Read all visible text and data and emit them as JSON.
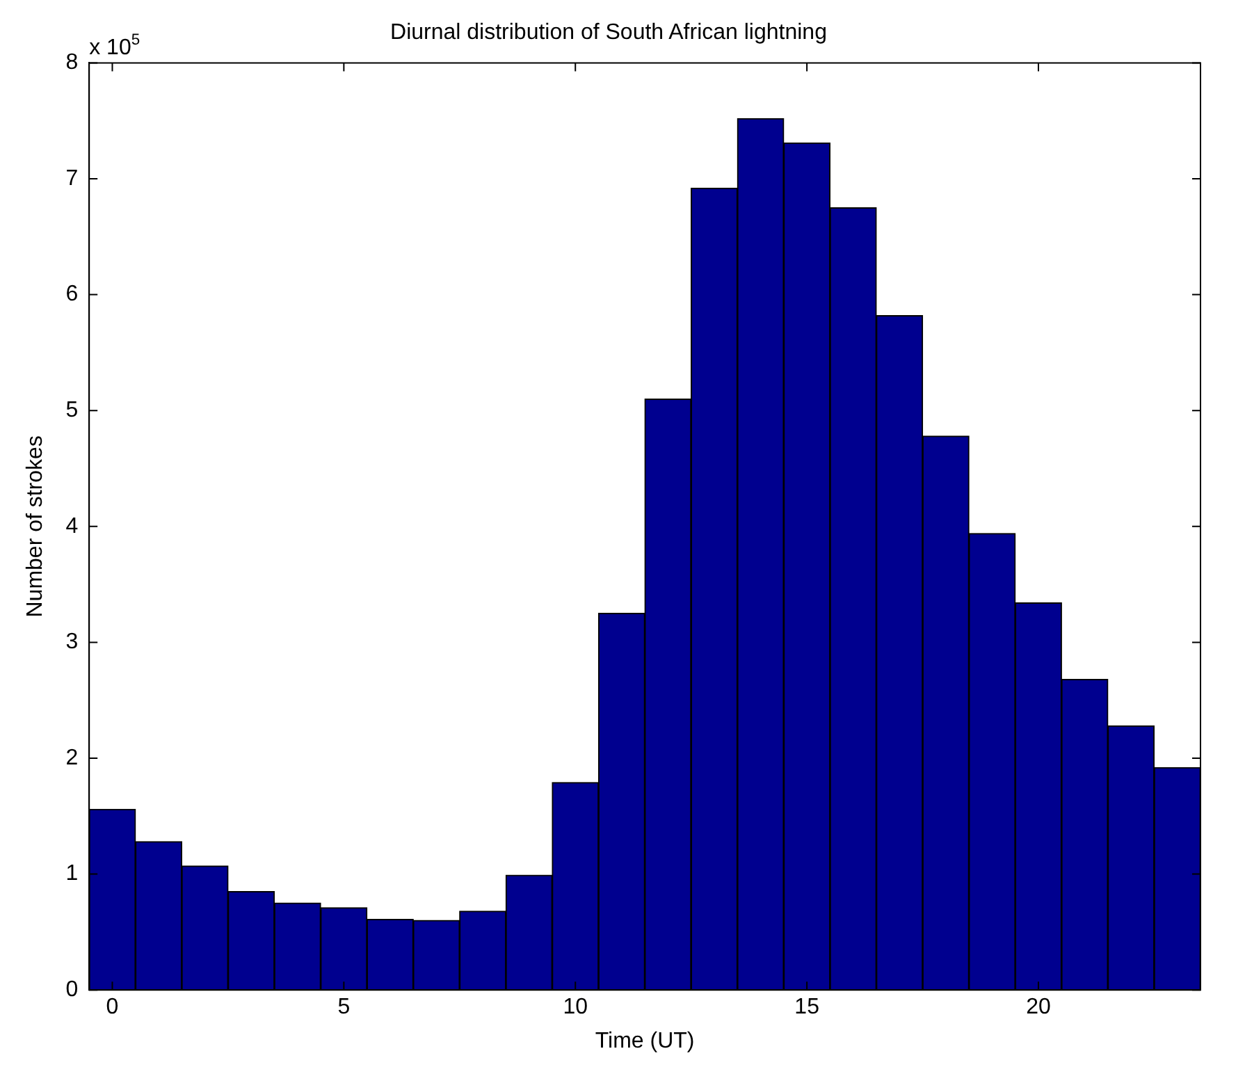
{
  "chart_data": {
    "type": "histogram",
    "title": "Diurnal distribution of South African lightning",
    "xlabel": "Time (UT)",
    "ylabel": "Number of strokes",
    "annotations": [
      "x 10$^{5}$"
    ],
    "bins": [
      -0.5,
      0.5,
      1.5,
      2.5,
      3.5,
      4.5,
      5.5,
      6.5,
      7.5,
      8.5,
      9.5,
      10.5,
      11.5,
      12.5,
      13.5,
      14.5,
      15.5,
      16.5,
      17.5,
      18.5,
      19.5,
      20.5,
      21.5,
      22.5,
      23.5
    ],
    "values": [
      1.56,
      1.28,
      1.07,
      0.85,
      0.75,
      0.71,
      0.61,
      0.6,
      0.68,
      0.99,
      1.79,
      3.25,
      5.1,
      6.92,
      7.52,
      7.31,
      6.75,
      5.82,
      4.78,
      3.94,
      3.34,
      2.68,
      2.28,
      1.92
    ],
    "color": "#00008f",
    "xlim": [
      -0.5,
      23.5
    ],
    "xticks": [
      0,
      5,
      10,
      15,
      20
    ],
    "ylim": [
      0,
      8
    ],
    "yticks": [
      0,
      1,
      2,
      3,
      4,
      5,
      6,
      7,
      8
    ],
    "grid": false,
    "legend": false
  }
}
